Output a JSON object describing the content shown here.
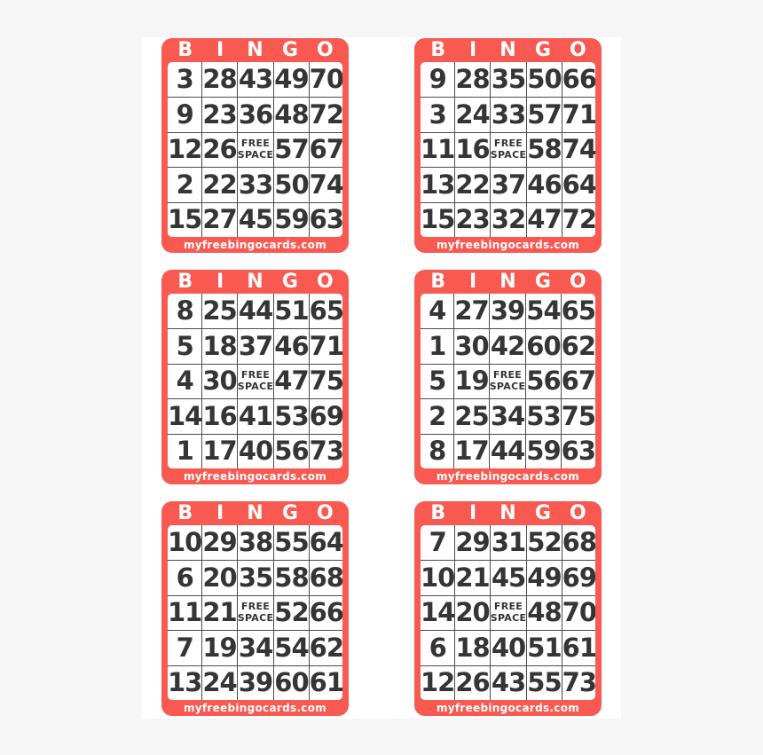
{
  "theme": {
    "card_red": "#f85a52",
    "number_color": "#353535",
    "grid_line_color": "#4c4c4c",
    "header_text_color": "#ffffff",
    "sheet_background": "#ffffff",
    "page_background": "#f6f6f7"
  },
  "header_letters": [
    "B",
    "I",
    "N",
    "G",
    "O"
  ],
  "free_space": {
    "line1": "FREE",
    "line2": "SPACE"
  },
  "footer_text": "myfreebingocards.com",
  "cards": [
    {
      "rows": [
        [
          3,
          28,
          43,
          49,
          70
        ],
        [
          9,
          23,
          36,
          48,
          72
        ],
        [
          12,
          26,
          null,
          57,
          67
        ],
        [
          2,
          22,
          33,
          50,
          74
        ],
        [
          15,
          27,
          45,
          59,
          63
        ]
      ]
    },
    {
      "rows": [
        [
          9,
          28,
          35,
          50,
          66
        ],
        [
          3,
          24,
          33,
          57,
          71
        ],
        [
          11,
          16,
          null,
          58,
          74
        ],
        [
          13,
          22,
          37,
          46,
          64
        ],
        [
          15,
          23,
          32,
          47,
          72
        ]
      ]
    },
    {
      "rows": [
        [
          8,
          25,
          44,
          51,
          65
        ],
        [
          5,
          18,
          37,
          46,
          71
        ],
        [
          4,
          30,
          null,
          47,
          75
        ],
        [
          14,
          16,
          41,
          53,
          69
        ],
        [
          1,
          17,
          40,
          56,
          73
        ]
      ]
    },
    {
      "rows": [
        [
          4,
          27,
          39,
          54,
          65
        ],
        [
          1,
          30,
          42,
          60,
          62
        ],
        [
          5,
          19,
          null,
          56,
          67
        ],
        [
          2,
          25,
          34,
          53,
          75
        ],
        [
          8,
          17,
          44,
          59,
          63
        ]
      ]
    },
    {
      "rows": [
        [
          10,
          29,
          38,
          55,
          64
        ],
        [
          6,
          20,
          35,
          58,
          68
        ],
        [
          11,
          21,
          null,
          52,
          66
        ],
        [
          7,
          19,
          34,
          54,
          62
        ],
        [
          13,
          24,
          39,
          60,
          61
        ]
      ]
    },
    {
      "rows": [
        [
          7,
          29,
          31,
          52,
          68
        ],
        [
          10,
          21,
          45,
          49,
          69
        ],
        [
          14,
          20,
          null,
          48,
          70
        ],
        [
          6,
          18,
          40,
          51,
          61
        ],
        [
          12,
          26,
          43,
          55,
          73
        ]
      ]
    }
  ]
}
